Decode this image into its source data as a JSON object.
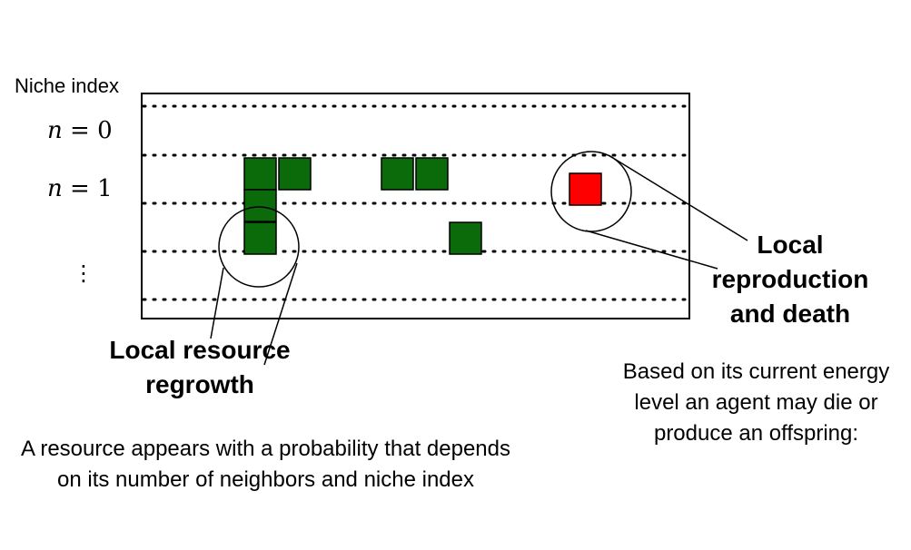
{
  "niche_axis": {
    "title": "Niche index",
    "levels": [
      {
        "var": "n",
        "eq": "=",
        "value": "0"
      },
      {
        "var": "n",
        "eq": "=",
        "value": "1"
      }
    ],
    "continuation": "⋮"
  },
  "grid": {
    "resource_color": "#0b6b0b",
    "agent_color": "#ff0000",
    "resource_count": 7,
    "agent_count": 1
  },
  "labels": {
    "regrowth_title": "Local resource regrowth",
    "regrowth_desc": "A resource appears with a probability that depends on its number of neighbors and niche index",
    "repro_title": "Local reproduction and death",
    "repro_desc": "Based on its current energy level an agent may die or produce an offspring:"
  }
}
